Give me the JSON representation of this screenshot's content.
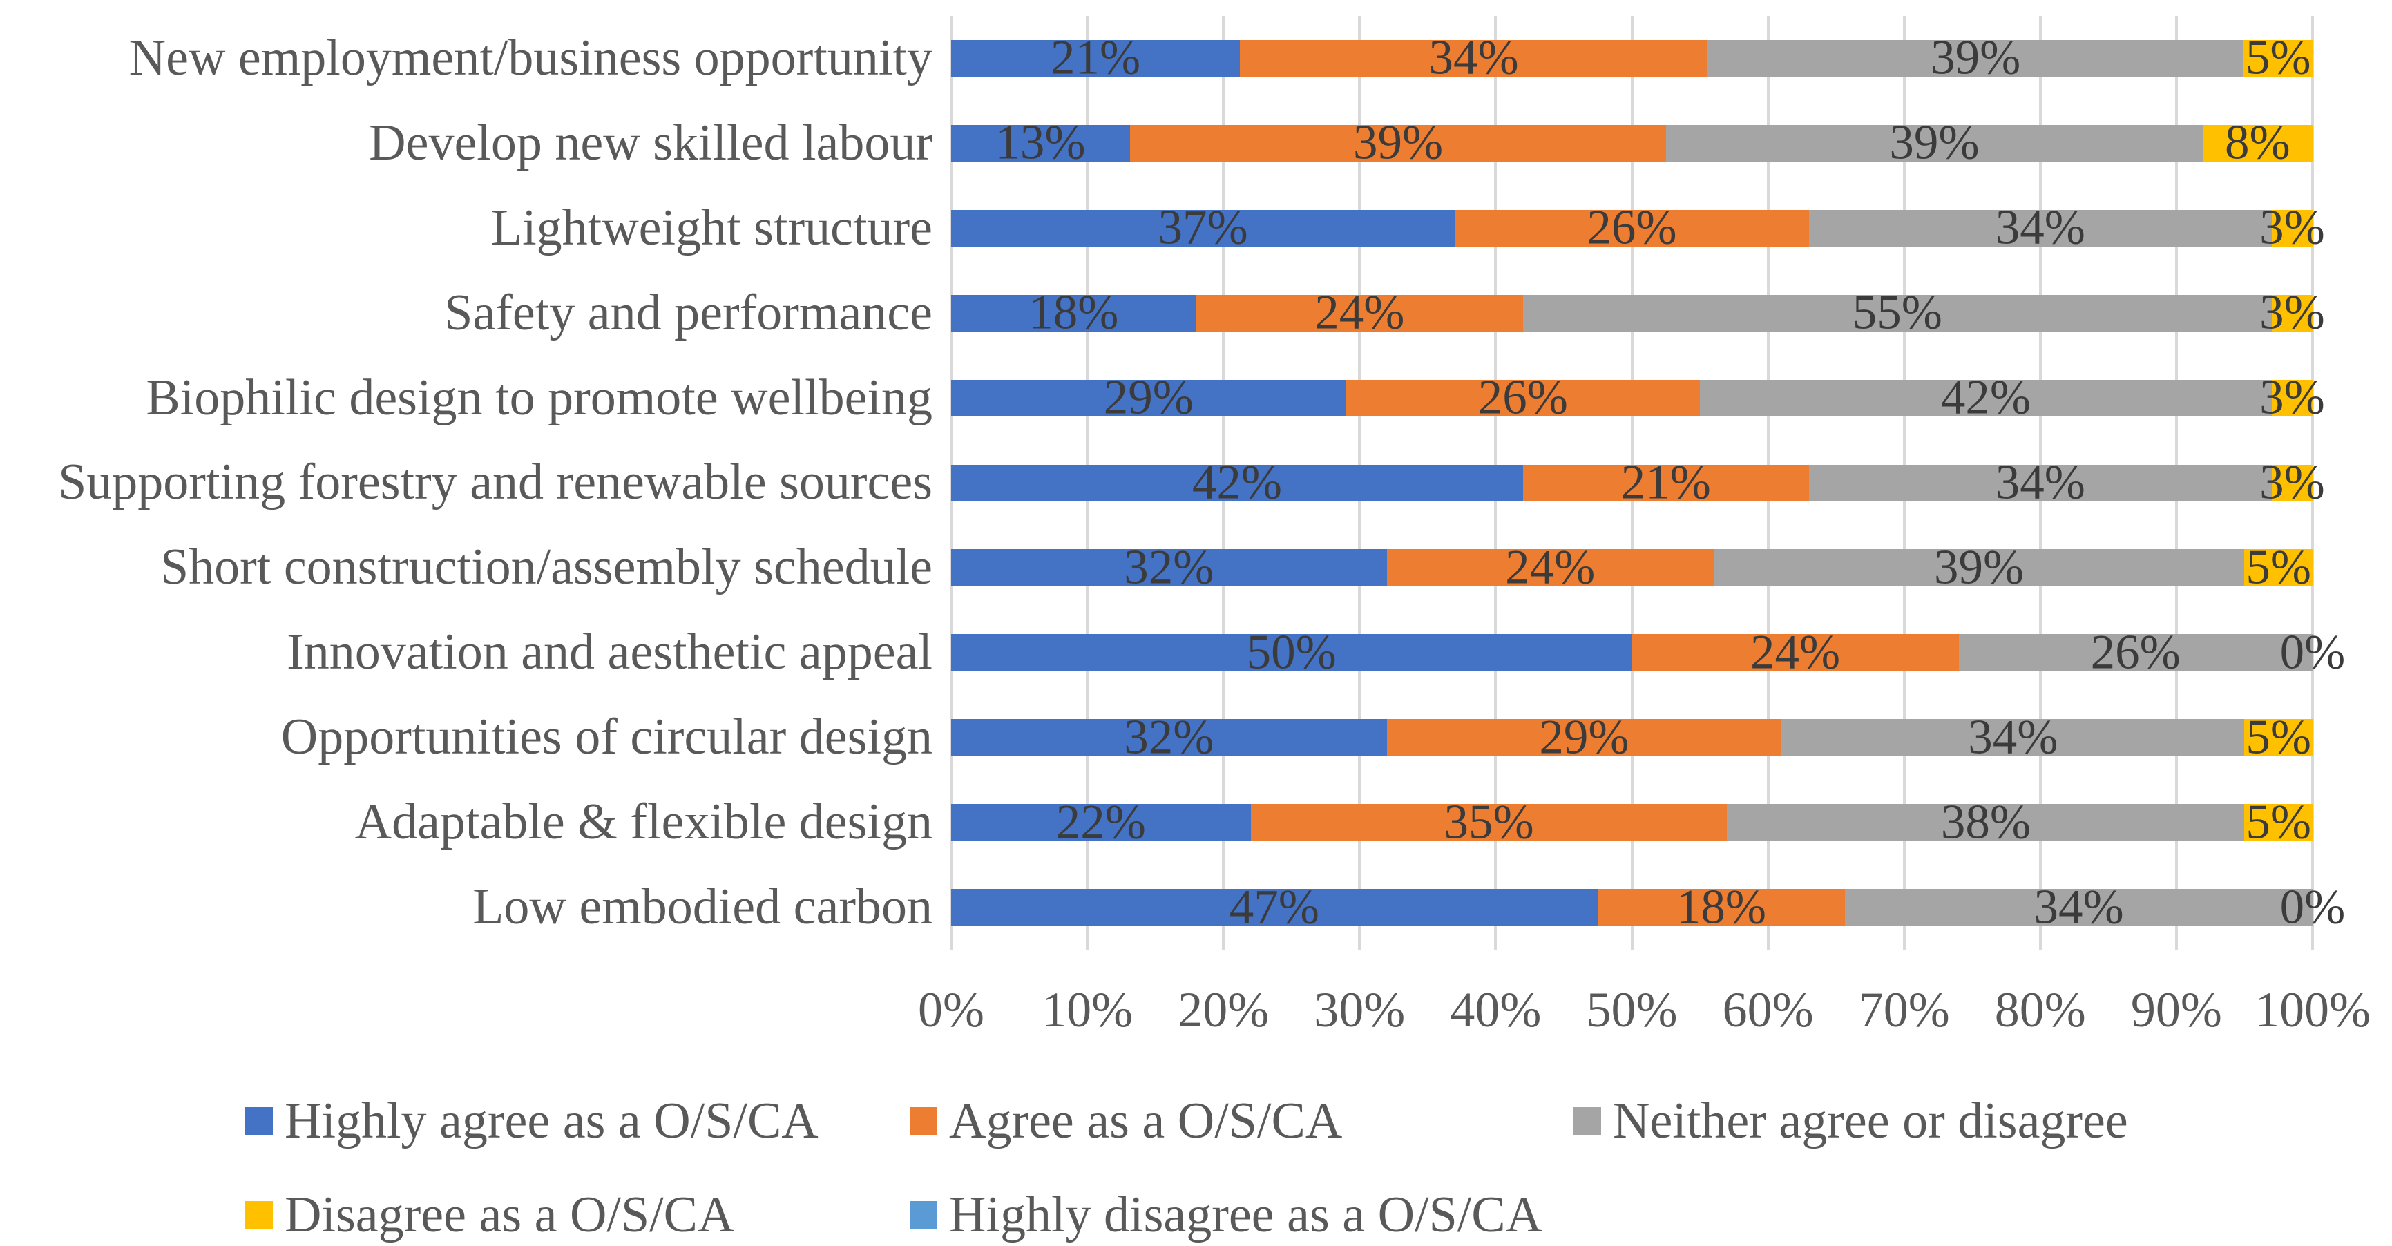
{
  "chart_data": {
    "type": "bar",
    "subtype": "horizontal-100pct-stacked",
    "title": "",
    "xlabel": "",
    "ylabel": "",
    "xlim": [
      0,
      100
    ],
    "grid": "vertical",
    "legend_position": "bottom",
    "x_ticks": [
      "0%",
      "10%",
      "20%",
      "30%",
      "40%",
      "50%",
      "60%",
      "70%",
      "80%",
      "90%",
      "100%"
    ],
    "categories": [
      "New employment/business opportunity",
      "Develop new skilled labour",
      "Lightweight structure",
      "Safety and performance",
      "Biophilic design to promote wellbeing",
      "Supporting forestry and renewable sources",
      "Short construction/assembly schedule",
      "Innovation and aesthetic appeal",
      "Opportunities of circular design",
      "Adaptable & flexible design",
      "Low embodied carbon"
    ],
    "series": [
      {
        "name": "Highly agree as a O/S/CA",
        "color": "#4472C4",
        "values": [
          21,
          13,
          37,
          18,
          29,
          42,
          32,
          50,
          32,
          22,
          47
        ]
      },
      {
        "name": "Agree as a O/S/CA",
        "color": "#ED7D31",
        "values": [
          34,
          39,
          26,
          24,
          26,
          21,
          24,
          24,
          29,
          35,
          18
        ]
      },
      {
        "name": "Neither agree or disagree",
        "color": "#A5A5A5",
        "values": [
          39,
          39,
          34,
          55,
          42,
          34,
          39,
          26,
          34,
          38,
          34
        ]
      },
      {
        "name": "Disagree as a O/S/CA",
        "color": "#FFC000",
        "values": [
          5,
          8,
          3,
          3,
          3,
          3,
          5,
          0,
          5,
          5,
          0
        ]
      },
      {
        "name": "Highly disagree as a O/S/CA",
        "color": "#5B9BD5",
        "values": [
          0,
          0,
          0,
          0,
          0,
          0,
          0,
          0,
          0,
          0,
          0
        ]
      }
    ],
    "bar_labels": [
      [
        "21%",
        "34%",
        "39%",
        "5%",
        ""
      ],
      [
        "13%",
        "39%",
        "39%",
        "8%",
        ""
      ],
      [
        "37%",
        "26%",
        "34%",
        "3%",
        ""
      ],
      [
        "18%",
        "24%",
        "55%",
        "3%",
        ""
      ],
      [
        "29%",
        "26%",
        "42%",
        "3%",
        ""
      ],
      [
        "42%",
        "21%",
        "34%",
        "3%",
        ""
      ],
      [
        "32%",
        "24%",
        "39%",
        "5%",
        ""
      ],
      [
        "50%",
        "24%",
        "26%",
        "0%",
        ""
      ],
      [
        "32%",
        "29%",
        "34%",
        "5%",
        ""
      ],
      [
        "22%",
        "35%",
        "38%",
        "5%",
        ""
      ],
      [
        "47%",
        "18%",
        "34%",
        "0%",
        ""
      ]
    ],
    "legend": [
      {
        "label": "Highly agree as a O/S/CA",
        "color": "#4472C4"
      },
      {
        "label": "Agree as a O/S/CA",
        "color": "#ED7D31"
      },
      {
        "label": "Neither agree or disagree",
        "color": "#A5A5A5"
      },
      {
        "label": "Disagree as a O/S/CA",
        "color": "#FFC000"
      },
      {
        "label": "Highly disagree as a O/S/CA",
        "color": "#5B9BD5"
      }
    ],
    "colors": {
      "gridline": "#D9D9D9",
      "axis_text": "#595959",
      "category_text": "#595959",
      "data_label_text": "#3B3B3B",
      "legend_text": "#595959",
      "background": "#FFFFFF"
    }
  }
}
